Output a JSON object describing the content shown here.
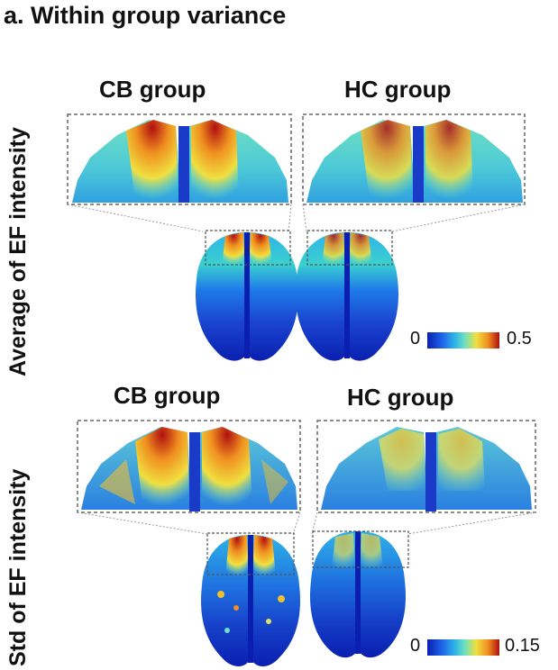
{
  "panel_title": "a. Within group variance",
  "rows": [
    {
      "row_label": "Average of EF intensity",
      "groups": [
        "CB group",
        "HC group"
      ],
      "colorbar": {
        "min_label": "0",
        "max_label": "0.5"
      }
    },
    {
      "row_label": "Std of EF intensity",
      "groups": [
        "CB group",
        "HC group"
      ],
      "colorbar": {
        "min_label": "0",
        "max_label": "0.15"
      }
    }
  ],
  "colormap": [
    "#0a1fb0",
    "#1e60e8",
    "#2fb3e8",
    "#6ee0c0",
    "#f0e040",
    "#f09020",
    "#b01010"
  ]
}
